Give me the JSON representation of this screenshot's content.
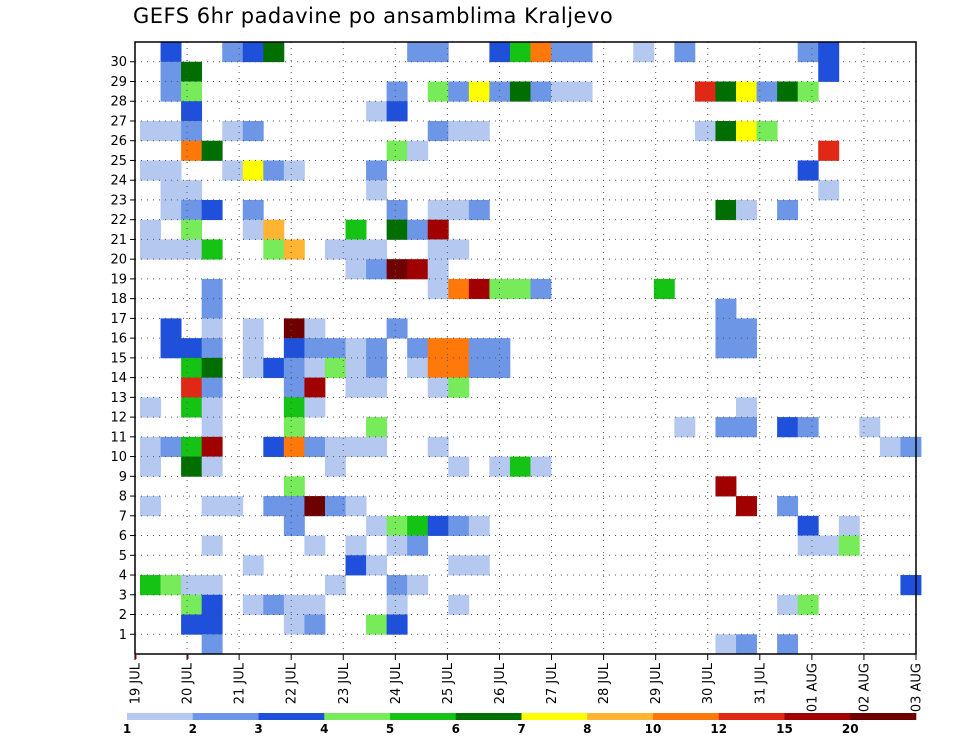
{
  "chart_data": {
    "type": "heatmap",
    "title": "GEFS 6hr padavine po ansamblima Kraljevo",
    "x_tick_labels": [
      "19 JUL",
      "20 JUL",
      "21 JUL",
      "22 JUL",
      "23 JUL",
      "24 JUL",
      "25 JUL",
      "26 JUL",
      "27 JUL",
      "28 JUL",
      "29 JUL",
      "30 JUL",
      "31 JUL",
      "01 AUG",
      "02 AUG",
      "03 AUG"
    ],
    "y_tick_labels": [
      "1",
      "2",
      "3",
      "4",
      "5",
      "6",
      "7",
      "8",
      "9",
      "10",
      "11",
      "12",
      "13",
      "14",
      "15",
      "16",
      "17",
      "18",
      "19",
      "20",
      "21",
      "22",
      "23",
      "24",
      "25",
      "26",
      "27",
      "28",
      "29",
      "30"
    ],
    "grid": true,
    "colorbar": {
      "placement": "bottom",
      "labels": [
        "1",
        "2",
        "3",
        "4",
        "5",
        "6",
        "7",
        "8",
        "10",
        "12",
        "15",
        "20"
      ],
      "colors": [
        "#b4c8f0",
        "#6e96e6",
        "#1e50dc",
        "#78eb5a",
        "#14c314",
        "#006e00",
        "#ffff00",
        "#ffb432",
        "#ff780a",
        "#e12814",
        "#a00000",
        "#6e0000"
      ]
    },
    "cells": [
      [
        30,
        1,
        3
      ],
      [
        30,
        4,
        2
      ],
      [
        30,
        5,
        3
      ],
      [
        30,
        6,
        6
      ],
      [
        30,
        13,
        2
      ],
      [
        30,
        14,
        2
      ],
      [
        30,
        17,
        3
      ],
      [
        30,
        18,
        5
      ],
      [
        30,
        19,
        9
      ],
      [
        30,
        20,
        2
      ],
      [
        30,
        21,
        2
      ],
      [
        30,
        24,
        1
      ],
      [
        30,
        26,
        2
      ],
      [
        30,
        32,
        2
      ],
      [
        30,
        33,
        3
      ],
      [
        29,
        1,
        2
      ],
      [
        29,
        2,
        6
      ],
      [
        29,
        33,
        3
      ],
      [
        28,
        1,
        2
      ],
      [
        28,
        2,
        4
      ],
      [
        28,
        12,
        2
      ],
      [
        28,
        14,
        4
      ],
      [
        28,
        15,
        2
      ],
      [
        28,
        16,
        7
      ],
      [
        28,
        17,
        2
      ],
      [
        28,
        18,
        6
      ],
      [
        28,
        19,
        2
      ],
      [
        28,
        20,
        1
      ],
      [
        28,
        21,
        1
      ],
      [
        28,
        27,
        10
      ],
      [
        28,
        28,
        6
      ],
      [
        28,
        29,
        7
      ],
      [
        28,
        30,
        2
      ],
      [
        28,
        31,
        6
      ],
      [
        28,
        32,
        4
      ],
      [
        27,
        2,
        3
      ],
      [
        27,
        11,
        1
      ],
      [
        27,
        12,
        3
      ],
      [
        26,
        0,
        1
      ],
      [
        26,
        1,
        1
      ],
      [
        26,
        2,
        2
      ],
      [
        26,
        4,
        1
      ],
      [
        26,
        5,
        2
      ],
      [
        26,
        14,
        2
      ],
      [
        26,
        15,
        1
      ],
      [
        26,
        16,
        1
      ],
      [
        26,
        27,
        1
      ],
      [
        26,
        28,
        6
      ],
      [
        26,
        29,
        7
      ],
      [
        26,
        30,
        4
      ],
      [
        25,
        2,
        9
      ],
      [
        25,
        3,
        6
      ],
      [
        25,
        12,
        4
      ],
      [
        25,
        13,
        1
      ],
      [
        25,
        33,
        10
      ],
      [
        24,
        0,
        1
      ],
      [
        24,
        1,
        1
      ],
      [
        24,
        4,
        1
      ],
      [
        24,
        5,
        7
      ],
      [
        24,
        6,
        2
      ],
      [
        24,
        7,
        1
      ],
      [
        24,
        11,
        2
      ],
      [
        24,
        32,
        3
      ],
      [
        23,
        1,
        1
      ],
      [
        23,
        2,
        1
      ],
      [
        23,
        11,
        1
      ],
      [
        23,
        33,
        1
      ],
      [
        22,
        1,
        1
      ],
      [
        22,
        2,
        2
      ],
      [
        22,
        3,
        3
      ],
      [
        22,
        5,
        2
      ],
      [
        22,
        12,
        2
      ],
      [
        22,
        14,
        1
      ],
      [
        22,
        15,
        1
      ],
      [
        22,
        16,
        2
      ],
      [
        22,
        28,
        6
      ],
      [
        22,
        29,
        1
      ],
      [
        22,
        31,
        2
      ],
      [
        21,
        0,
        1
      ],
      [
        21,
        2,
        4
      ],
      [
        21,
        5,
        1
      ],
      [
        21,
        6,
        8
      ],
      [
        21,
        10,
        5
      ],
      [
        21,
        12,
        6
      ],
      [
        21,
        13,
        2
      ],
      [
        21,
        14,
        11
      ],
      [
        20,
        0,
        1
      ],
      [
        20,
        1,
        1
      ],
      [
        20,
        2,
        1
      ],
      [
        20,
        3,
        5
      ],
      [
        20,
        6,
        4
      ],
      [
        20,
        7,
        8
      ],
      [
        20,
        9,
        1
      ],
      [
        20,
        10,
        1
      ],
      [
        20,
        11,
        1
      ],
      [
        20,
        14,
        1
      ],
      [
        20,
        15,
        1
      ],
      [
        19,
        10,
        1
      ],
      [
        19,
        11,
        2
      ],
      [
        19,
        12,
        12
      ],
      [
        19,
        13,
        11
      ],
      [
        19,
        14,
        1
      ],
      [
        18,
        3,
        2
      ],
      [
        18,
        14,
        1
      ],
      [
        18,
        15,
        9
      ],
      [
        18,
        16,
        11
      ],
      [
        18,
        17,
        4
      ],
      [
        18,
        18,
        4
      ],
      [
        18,
        19,
        2
      ],
      [
        18,
        25,
        5
      ],
      [
        17,
        3,
        2
      ],
      [
        17,
        28,
        2
      ],
      [
        16,
        1,
        3
      ],
      [
        16,
        3,
        1
      ],
      [
        16,
        5,
        1
      ],
      [
        16,
        7,
        12
      ],
      [
        16,
        8,
        1
      ],
      [
        16,
        12,
        2
      ],
      [
        16,
        28,
        2
      ],
      [
        16,
        29,
        2
      ],
      [
        15,
        1,
        3
      ],
      [
        15,
        2,
        3
      ],
      [
        15,
        3,
        2
      ],
      [
        15,
        5,
        1
      ],
      [
        15,
        7,
        3
      ],
      [
        15,
        8,
        2
      ],
      [
        15,
        9,
        2
      ],
      [
        15,
        10,
        1
      ],
      [
        15,
        11,
        2
      ],
      [
        15,
        13,
        2
      ],
      [
        15,
        14,
        9
      ],
      [
        15,
        15,
        9
      ],
      [
        15,
        16,
        2
      ],
      [
        15,
        17,
        2
      ],
      [
        15,
        28,
        2
      ],
      [
        15,
        29,
        2
      ],
      [
        14,
        2,
        5
      ],
      [
        14,
        3,
        6
      ],
      [
        14,
        5,
        1
      ],
      [
        14,
        6,
        3
      ],
      [
        14,
        7,
        2
      ],
      [
        14,
        8,
        1
      ],
      [
        14,
        9,
        4
      ],
      [
        14,
        10,
        1
      ],
      [
        14,
        11,
        2
      ],
      [
        14,
        13,
        1
      ],
      [
        14,
        14,
        9
      ],
      [
        14,
        15,
        9
      ],
      [
        14,
        16,
        2
      ],
      [
        14,
        17,
        2
      ],
      [
        13,
        2,
        10
      ],
      [
        13,
        3,
        2
      ],
      [
        13,
        7,
        2
      ],
      [
        13,
        8,
        11
      ],
      [
        13,
        10,
        1
      ],
      [
        13,
        11,
        1
      ],
      [
        13,
        14,
        1
      ],
      [
        13,
        15,
        4
      ],
      [
        12,
        0,
        1
      ],
      [
        12,
        2,
        5
      ],
      [
        12,
        3,
        1
      ],
      [
        12,
        7,
        5
      ],
      [
        12,
        8,
        1
      ],
      [
        12,
        29,
        1
      ],
      [
        11,
        3,
        1
      ],
      [
        11,
        7,
        4
      ],
      [
        11,
        11,
        4
      ],
      [
        11,
        26,
        1
      ],
      [
        11,
        28,
        2
      ],
      [
        11,
        29,
        2
      ],
      [
        11,
        31,
        3
      ],
      [
        11,
        32,
        2
      ],
      [
        11,
        35,
        1
      ],
      [
        10,
        0,
        1
      ],
      [
        10,
        1,
        2
      ],
      [
        10,
        2,
        5
      ],
      [
        10,
        3,
        11
      ],
      [
        10,
        6,
        3
      ],
      [
        10,
        7,
        9
      ],
      [
        10,
        8,
        2
      ],
      [
        10,
        9,
        1
      ],
      [
        10,
        10,
        1
      ],
      [
        10,
        11,
        1
      ],
      [
        10,
        14,
        1
      ],
      [
        10,
        36,
        1
      ],
      [
        10,
        37,
        2
      ],
      [
        9,
        0,
        1
      ],
      [
        9,
        2,
        6
      ],
      [
        9,
        3,
        1
      ],
      [
        9,
        9,
        1
      ],
      [
        9,
        15,
        1
      ],
      [
        9,
        17,
        1
      ],
      [
        9,
        18,
        5
      ],
      [
        9,
        19,
        1
      ],
      [
        8,
        7,
        4
      ],
      [
        8,
        28,
        11
      ],
      [
        7,
        0,
        1
      ],
      [
        7,
        3,
        1
      ],
      [
        7,
        4,
        1
      ],
      [
        7,
        6,
        2
      ],
      [
        7,
        7,
        2
      ],
      [
        7,
        8,
        12
      ],
      [
        7,
        9,
        2
      ],
      [
        7,
        10,
        1
      ],
      [
        7,
        29,
        11
      ],
      [
        7,
        31,
        2
      ],
      [
        6,
        7,
        2
      ],
      [
        6,
        11,
        1
      ],
      [
        6,
        12,
        4
      ],
      [
        6,
        13,
        5
      ],
      [
        6,
        14,
        3
      ],
      [
        6,
        15,
        2
      ],
      [
        6,
        16,
        1
      ],
      [
        6,
        32,
        3
      ],
      [
        6,
        34,
        1
      ],
      [
        5,
        3,
        1
      ],
      [
        5,
        8,
        1
      ],
      [
        5,
        10,
        1
      ],
      [
        5,
        12,
        1
      ],
      [
        5,
        13,
        2
      ],
      [
        5,
        32,
        1
      ],
      [
        5,
        33,
        1
      ],
      [
        5,
        34,
        4
      ],
      [
        4,
        5,
        1
      ],
      [
        4,
        10,
        3
      ],
      [
        4,
        11,
        1
      ],
      [
        4,
        15,
        1
      ],
      [
        4,
        16,
        1
      ],
      [
        3,
        0,
        5
      ],
      [
        3,
        1,
        4
      ],
      [
        3,
        2,
        1
      ],
      [
        3,
        3,
        1
      ],
      [
        3,
        9,
        1
      ],
      [
        3,
        12,
        2
      ],
      [
        3,
        13,
        1
      ],
      [
        3,
        37,
        3
      ],
      [
        2,
        2,
        4
      ],
      [
        2,
        3,
        3
      ],
      [
        2,
        5,
        1
      ],
      [
        2,
        6,
        2
      ],
      [
        2,
        7,
        1
      ],
      [
        2,
        8,
        1
      ],
      [
        2,
        12,
        1
      ],
      [
        2,
        15,
        1
      ],
      [
        2,
        31,
        1
      ],
      [
        2,
        32,
        4
      ],
      [
        1,
        2,
        3
      ],
      [
        1,
        3,
        3
      ],
      [
        1,
        7,
        1
      ],
      [
        1,
        8,
        2
      ],
      [
        1,
        11,
        4
      ],
      [
        1,
        12,
        3
      ],
      [
        0,
        3,
        2
      ],
      [
        0,
        28,
        1
      ],
      [
        0,
        29,
        2
      ],
      [
        0,
        31,
        2
      ]
    ]
  }
}
